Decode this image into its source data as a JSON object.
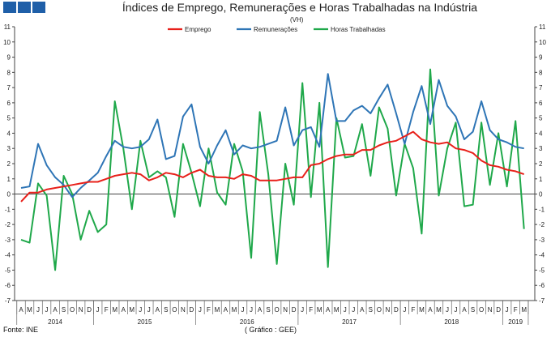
{
  "header": {
    "squares_color": "#1f5fa8"
  },
  "chart_data": {
    "type": "line",
    "title": "Índices de Emprego, Remunerações e Horas Trabalhadas na Indústria",
    "unit": "(VH)",
    "source": "Fonte: INE",
    "credit": "( Gráfico : GEE)",
    "ylim": [
      -7,
      11
    ],
    "yticks": [
      "-7",
      "-6",
      "-5",
      "-4",
      "-3",
      "-2",
      "-1",
      "0",
      "1",
      "2",
      "3",
      "4",
      "5",
      "6",
      "7",
      "8",
      "9",
      "10",
      "11"
    ],
    "grid": false,
    "legend_position": "top-center",
    "x_month_labels": [
      "A",
      "M",
      "J",
      "J",
      "A",
      "S",
      "O",
      "N",
      "D",
      "J",
      "F",
      "M",
      "A",
      "M",
      "J",
      "J",
      "A",
      "S",
      "O",
      "N",
      "D",
      "J",
      "F",
      "M",
      "A",
      "M",
      "J",
      "J",
      "A",
      "S",
      "O",
      "N",
      "D",
      "J",
      "F",
      "M",
      "A",
      "M",
      "J",
      "J",
      "A",
      "S",
      "O",
      "N",
      "D",
      "J",
      "F",
      "M",
      "A",
      "M",
      "J",
      "J",
      "A",
      "S",
      "O",
      "N",
      "D",
      "J",
      "F",
      "M"
    ],
    "year_labels": [
      {
        "label": "2014",
        "start": 0,
        "end": 8
      },
      {
        "label": "2015",
        "start": 9,
        "end": 20
      },
      {
        "label": "2016",
        "start": 21,
        "end": 32
      },
      {
        "label": "2017",
        "start": 33,
        "end": 44
      },
      {
        "label": "2018",
        "start": 45,
        "end": 56
      },
      {
        "label": "2019",
        "start": 57,
        "end": 59
      }
    ],
    "series": [
      {
        "name": "Emprego",
        "color": "#e8201a",
        "values": [
          -0.5,
          0.1,
          0.1,
          0.3,
          0.4,
          0.5,
          0.6,
          0.7,
          0.8,
          0.8,
          1.0,
          1.2,
          1.3,
          1.4,
          1.3,
          0.9,
          1.1,
          1.4,
          1.3,
          1.1,
          1.4,
          1.6,
          1.2,
          1.1,
          1.1,
          1.0,
          1.3,
          1.2,
          0.9,
          0.9,
          0.9,
          1.0,
          1.1,
          1.1,
          1.9,
          2.0,
          2.3,
          2.5,
          2.6,
          2.6,
          2.9,
          2.9,
          3.2,
          3.4,
          3.5,
          3.8,
          4.1,
          3.6,
          3.4,
          3.3,
          3.4,
          3.0,
          2.9,
          2.7,
          2.2,
          1.9,
          1.8,
          1.6,
          1.5,
          1.3
        ]
      },
      {
        "name": "Remunerações",
        "color": "#2e75b6",
        "values": [
          0.4,
          0.5,
          3.3,
          1.9,
          1.1,
          0.6,
          -0.2,
          0.4,
          0.9,
          1.4,
          2.5,
          3.5,
          3.1,
          3.0,
          3.1,
          3.6,
          4.9,
          2.3,
          2.5,
          5.1,
          5.9,
          3.1,
          2.0,
          3.2,
          4.2,
          2.6,
          3.2,
          3.0,
          3.1,
          3.3,
          3.5,
          5.7,
          3.2,
          4.2,
          4.4,
          3.1,
          7.9,
          4.8,
          4.8,
          5.5,
          5.8,
          5.3,
          6.3,
          7.2,
          5.3,
          3.3,
          5.4,
          7.1,
          4.6,
          7.5,
          5.8,
          5.1,
          3.6,
          4.1,
          6.1,
          4.2,
          3.6,
          3.4,
          3.1,
          3.0
        ]
      },
      {
        "name": "Horas Trabalhadas",
        "color": "#1fa84a",
        "values": [
          -3.0,
          -3.2,
          0.7,
          -0.1,
          -5.0,
          1.2,
          0.0,
          -3.0,
          -1.1,
          -2.5,
          -2.0,
          6.1,
          3.0,
          -1.0,
          3.5,
          1.1,
          1.5,
          1.1,
          -1.5,
          3.3,
          1.4,
          -0.8,
          3.0,
          0.1,
          -0.7,
          3.3,
          1.5,
          -4.2,
          5.4,
          1.3,
          -4.6,
          2.0,
          -0.7,
          7.3,
          -0.2,
          6.0,
          -4.8,
          5.0,
          2.4,
          2.5,
          4.6,
          1.2,
          5.7,
          4.3,
          -0.1,
          3.3,
          1.7,
          -2.6,
          8.2,
          -0.1,
          3.0,
          4.7,
          -0.8,
          -0.7,
          4.7,
          0.6,
          4.0,
          0.5,
          4.8,
          -2.3
        ]
      }
    ]
  }
}
